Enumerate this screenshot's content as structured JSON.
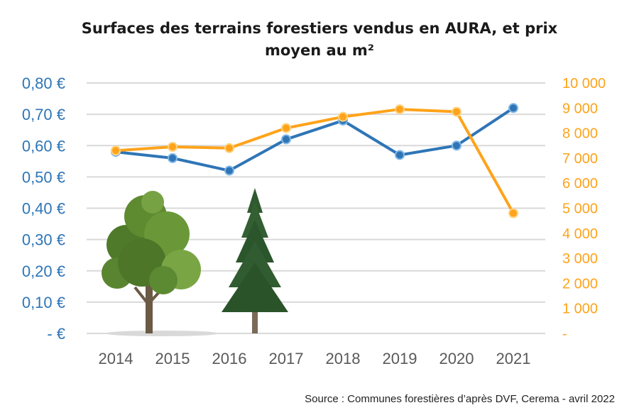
{
  "chart_data": {
    "type": "line",
    "title_lines": [
      "Surfaces des terrains forestiers vendus en AURA, et prix",
      "moyen au m²"
    ],
    "categories": [
      "2014",
      "2015",
      "2016",
      "2017",
      "2018",
      "2019",
      "2020",
      "2021"
    ],
    "y_left": {
      "min": 0,
      "max": 0.8,
      "tick_labels": [
        "-   €",
        "0,10 €",
        "0,20 €",
        "0,30 €",
        "0,40 €",
        "0,50 €",
        "0,60 €",
        "0,70 €",
        "0,80 €"
      ],
      "color": "#2E75B6"
    },
    "y_right": {
      "min": 0,
      "max": 10000,
      "tick_labels": [
        "-",
        "1 000",
        "2 000",
        "3 000",
        "4 000",
        "5 000",
        "6 000",
        "7 000",
        "8 000",
        "9 000",
        "10 000"
      ],
      "color": "#FFA31A"
    },
    "series": [
      {
        "axis": "left",
        "color": "#2E75B6",
        "values": [
          0.58,
          0.56,
          0.52,
          0.62,
          0.68,
          0.57,
          0.6,
          0.72
        ]
      },
      {
        "axis": "right",
        "color": "#FFA31A",
        "values": [
          7300,
          7450,
          7400,
          8200,
          8650,
          8950,
          8850,
          4800
        ]
      }
    ],
    "grid": true,
    "source": "Source : Communes forestières d’après DVF, Cerema - avril 2022"
  }
}
